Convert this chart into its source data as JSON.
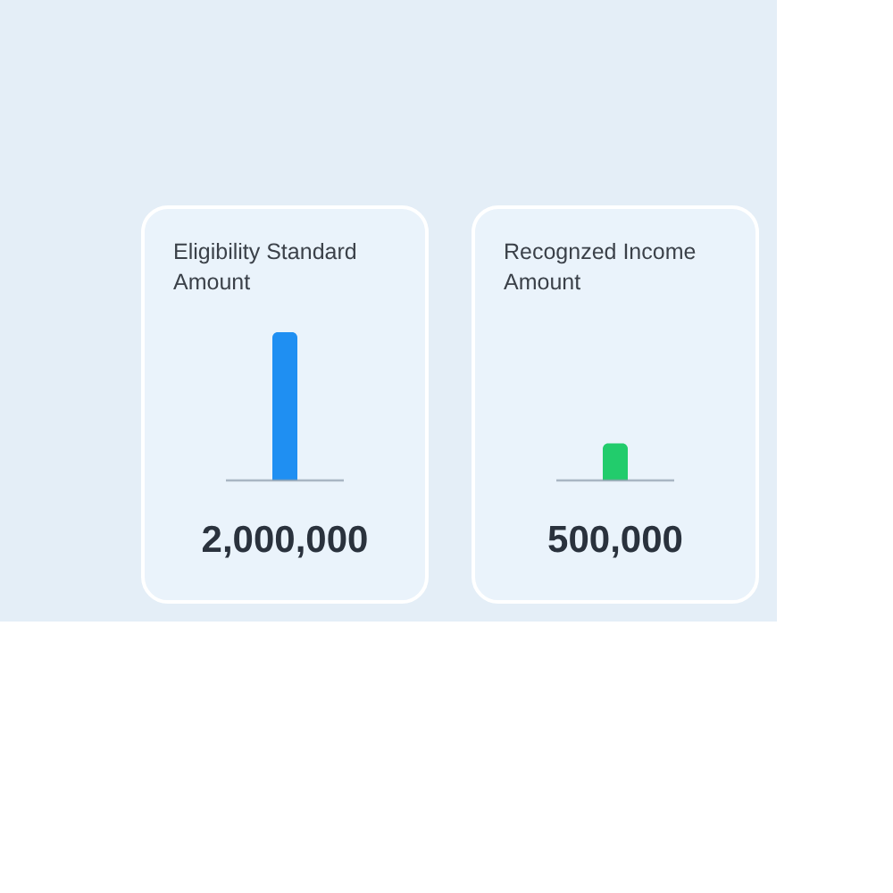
{
  "chart_data": {
    "type": "bar",
    "categories": [
      "Eligibility Standard Amount",
      "Recognzed Income Amount"
    ],
    "values": [
      2000000,
      500000
    ],
    "value_labels": [
      "2,000,000",
      "500,000"
    ],
    "colors": [
      "#1f8ff2",
      "#22cc6c"
    ]
  }
}
